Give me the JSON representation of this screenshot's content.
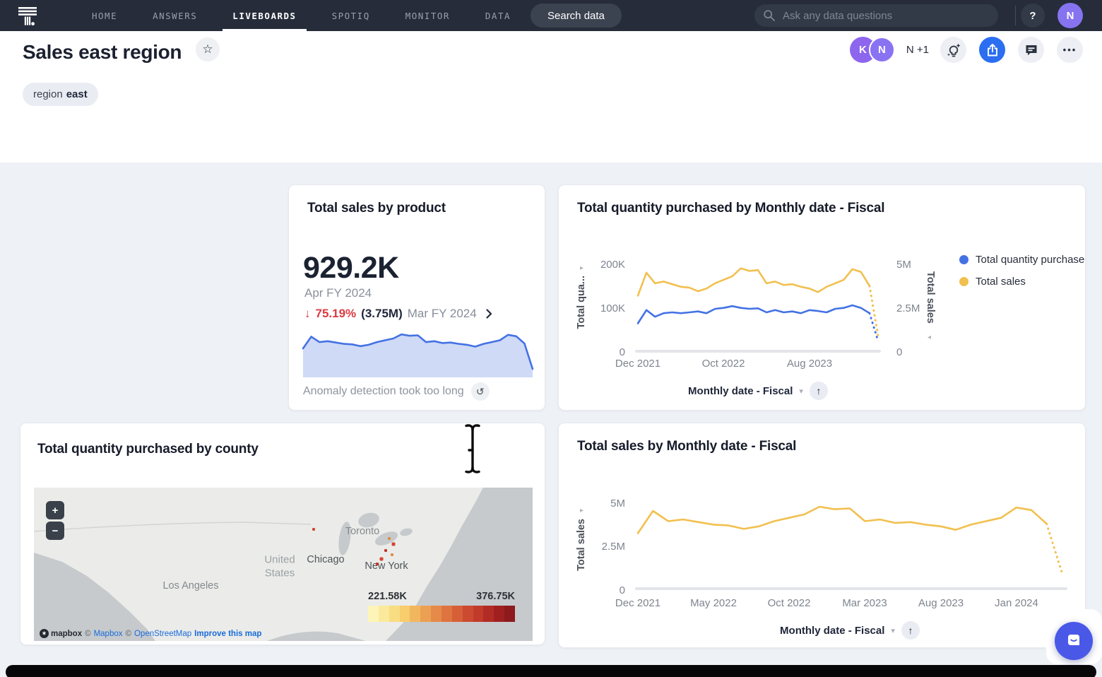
{
  "nav": {
    "items": [
      "HOME",
      "ANSWERS",
      "LIVEBOARDS",
      "SPOTIQ",
      "MONITOR",
      "DATA"
    ],
    "active_item": "LIVEBOARDS",
    "search_button_label": "Search data",
    "ask_placeholder": "Ask any data questions",
    "help_label": "?",
    "user_avatar": "N"
  },
  "header": {
    "title": "Sales east region",
    "filter_chip": {
      "label": "region",
      "value": "east"
    },
    "avatars": [
      "K",
      "N"
    ],
    "overflow_label": "N +1"
  },
  "kpi_card": {
    "title": "Total sales by product",
    "value": "929.2K",
    "period": "Apr FY 2024",
    "change": {
      "direction": "down",
      "arrow": "↓",
      "percent": "75.19%",
      "absolute": "(3.75M)",
      "compare_period": "Mar FY 2024"
    },
    "footer_message": "Anomaly detection took too long"
  },
  "chart_data": [
    {
      "type": "area",
      "title": "Total sales by product sparkline",
      "color": "#4472e4",
      "fill": "#cfdaf6",
      "ymax": 5000000,
      "values": [
        3200000,
        4500000,
        3900000,
        4000000,
        3850000,
        3700000,
        3650000,
        3450000,
        3600000,
        3900000,
        4100000,
        4300000,
        4750000,
        4600000,
        4650000,
        3900000,
        4000000,
        3800000,
        3850000,
        3700000,
        3600000,
        3400000,
        3700000,
        3900000,
        4100000,
        4700000,
        4550000,
        3750000,
        929200
      ]
    },
    {
      "type": "line",
      "title": "Total quantity purchased by Monthly date - Fiscal",
      "x": [
        "Dec 2021",
        "Jan 2022",
        "Feb 2022",
        "Mar 2022",
        "Apr 2022",
        "May 2022",
        "Jun 2022",
        "Jul 2022",
        "Aug 2022",
        "Sep 2022",
        "Oct 2022",
        "Nov 2022",
        "Dec 2022",
        "Jan 2023",
        "Feb 2023",
        "Mar 2023",
        "Apr 2023",
        "May 2023",
        "Jun 2023",
        "Jul 2023",
        "Aug 2023",
        "Sep 2023",
        "Oct 2023",
        "Nov 2023",
        "Dec 2023",
        "Jan 2024",
        "Feb 2024",
        "Mar 2024",
        "Apr 2024"
      ],
      "xticks": [
        "Dec 2021",
        "Oct 2022",
        "Aug 2023"
      ],
      "yaxis_left": {
        "label": "Total qua...",
        "ticks": [
          "0",
          "100K",
          "200K"
        ],
        "range": [
          0,
          220000
        ]
      },
      "yaxis_right": {
        "label": "Total sales",
        "ticks": [
          "0",
          "2.5M",
          "5M"
        ],
        "range": [
          0,
          5500000
        ]
      },
      "legend": [
        {
          "label": "Total quantity purchased",
          "color": "#4472e4"
        },
        {
          "label": "Total sales",
          "color": "#f1c04f"
        }
      ],
      "series": [
        {
          "name": "Total quantity purchased",
          "color": "#4472e4",
          "ymax": 220000,
          "dash_from": 27,
          "values": [
            65000,
            95000,
            80000,
            88000,
            90000,
            88000,
            90000,
            92000,
            88000,
            98000,
            100000,
            104000,
            100000,
            98000,
            99000,
            90000,
            95000,
            90000,
            92000,
            88000,
            95000,
            93000,
            90000,
            98000,
            100000,
            106000,
            100000,
            88000,
            25000
          ]
        },
        {
          "name": "Total sales",
          "color": "#f1c04f",
          "ymax": 5500000,
          "dash_from": 27,
          "values": [
            3200000,
            4500000,
            3900000,
            4000000,
            3850000,
            3700000,
            3650000,
            3450000,
            3600000,
            3900000,
            4100000,
            4300000,
            4750000,
            4600000,
            4650000,
            3900000,
            4000000,
            3800000,
            3850000,
            3700000,
            3600000,
            3400000,
            3700000,
            3900000,
            4100000,
            4700000,
            4550000,
            3750000,
            929200
          ]
        }
      ],
      "footer_control": "Monthly date - Fiscal"
    },
    {
      "type": "line",
      "title": "Total sales by Monthly date - Fiscal",
      "x": [
        "Dec 2021",
        "Jan 2022",
        "Feb 2022",
        "Mar 2022",
        "Apr 2022",
        "May 2022",
        "Jun 2022",
        "Jul 2022",
        "Aug 2022",
        "Sep 2022",
        "Oct 2022",
        "Nov 2022",
        "Dec 2022",
        "Jan 2023",
        "Feb 2023",
        "Mar 2023",
        "Apr 2023",
        "May 2023",
        "Jun 2023",
        "Jul 2023",
        "Aug 2023",
        "Sep 2023",
        "Oct 2023",
        "Nov 2023",
        "Dec 2023",
        "Jan 2024",
        "Feb 2024",
        "Mar 2024",
        "Apr 2024"
      ],
      "xticks": [
        "Dec 2021",
        "May 2022",
        "Oct 2022",
        "Mar 2023",
        "Aug 2023",
        "Jan 2024"
      ],
      "yaxis_left": {
        "label": "Total sales",
        "ticks": [
          "0",
          "2.5M",
          "5M"
        ],
        "range": [
          0,
          5450000
        ]
      },
      "series": [
        {
          "name": "Total sales",
          "color": "#f1c04f",
          "ymax": 5450000,
          "dash_from": 27,
          "values": [
            3200000,
            4500000,
            3900000,
            4000000,
            3850000,
            3700000,
            3650000,
            3450000,
            3600000,
            3900000,
            4100000,
            4300000,
            4750000,
            4600000,
            4650000,
            3900000,
            4000000,
            3800000,
            3850000,
            3700000,
            3600000,
            3400000,
            3700000,
            3900000,
            4100000,
            4700000,
            4550000,
            3750000,
            929200
          ]
        }
      ],
      "footer_control": "Monthly date - Fiscal"
    },
    {
      "type": "scatter",
      "title": "Total quantity purchased by county",
      "map_labels": [
        {
          "text": "Toronto",
          "x": 465,
          "y": 62,
          "cls": "city-light"
        },
        {
          "text": "Chicago",
          "x": 413,
          "y": 102,
          "cls": "city-dark"
        },
        {
          "text": "United\nStates",
          "x": 348,
          "y": 112,
          "cls": "country"
        },
        {
          "text": "New York",
          "x": 499,
          "y": 111,
          "cls": "city-dark"
        },
        {
          "text": "Los Angeles",
          "x": 222,
          "y": 139,
          "cls": "city-light"
        }
      ],
      "points": [
        {
          "x": 396,
          "y": 59,
          "color": "#d64431",
          "size": 4
        },
        {
          "x": 503,
          "y": 72,
          "color": "#e0893f",
          "size": 4
        },
        {
          "x": 509,
          "y": 80,
          "color": "#d64431",
          "size": 5
        },
        {
          "x": 498,
          "y": 89,
          "color": "#c23327",
          "size": 4
        },
        {
          "x": 507,
          "y": 95,
          "color": "#e0893f",
          "size": 4
        },
        {
          "x": 492,
          "y": 101,
          "color": "#d64431",
          "size": 5
        },
        {
          "x": 486,
          "y": 108,
          "color": "#c23327",
          "size": 4
        }
      ],
      "colorbar": {
        "min_label": "221.58K",
        "max_label": "376.75K",
        "colors": [
          "#fdf4b8",
          "#fbea9b",
          "#f9dd82",
          "#f7cd6d",
          "#f2b75e",
          "#eca053",
          "#e58a49",
          "#de7440",
          "#d65f38",
          "#cc4a30",
          "#c13a2a",
          "#b22b24",
          "#a02020",
          "#8d1a1d"
        ]
      },
      "zoom_in": "+",
      "zoom_out": "−",
      "attribution": {
        "logo_text": "mapbox",
        "copyright_1": "©",
        "link_1": "Mapbox",
        "copyright_2": "©",
        "link_2": "OpenStreetMap",
        "improve": "Improve this map"
      }
    }
  ]
}
